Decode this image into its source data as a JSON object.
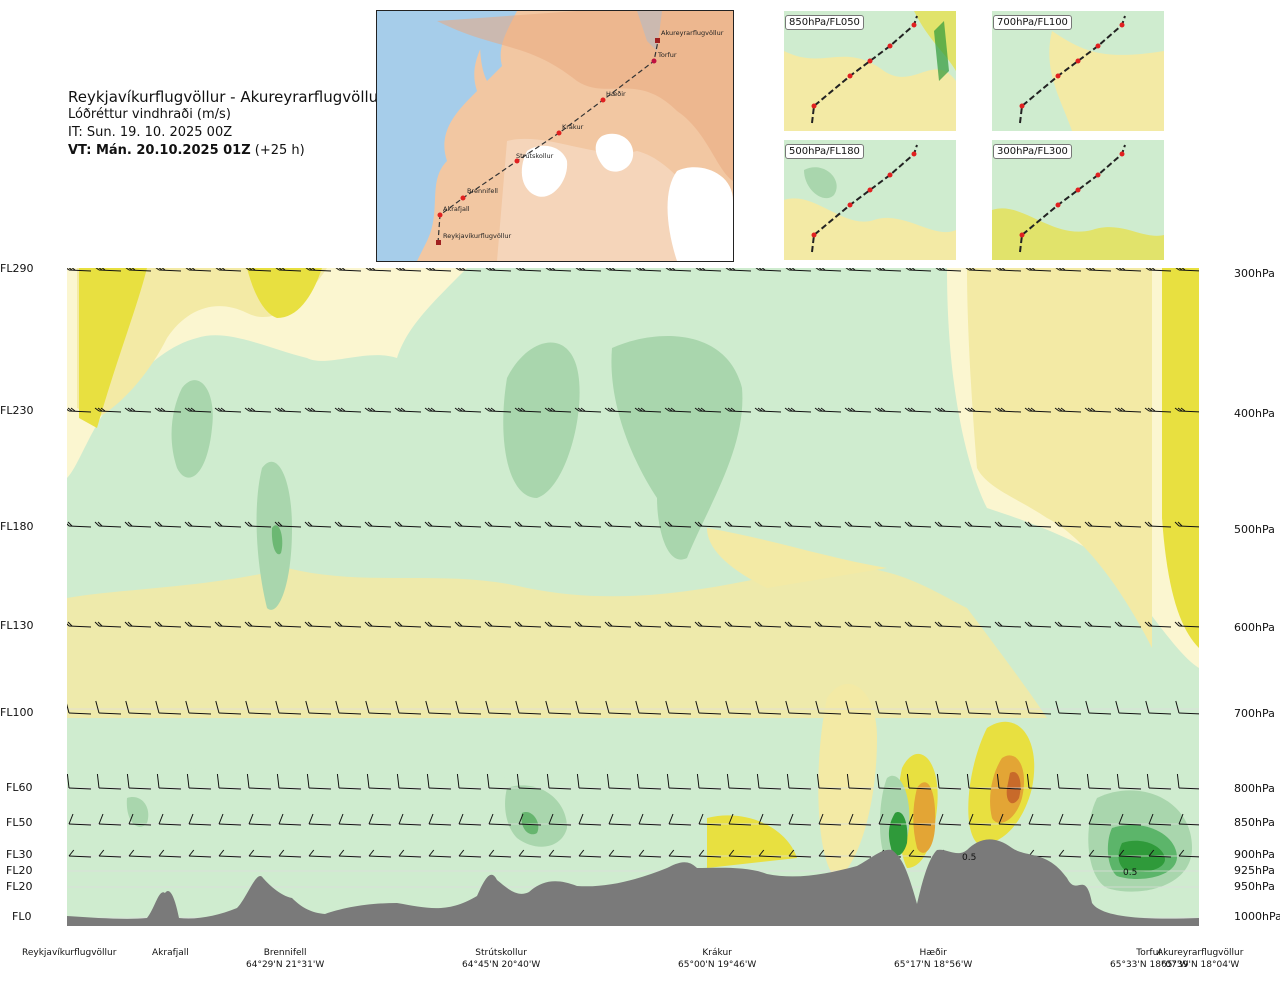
{
  "header": {
    "route": "Reykjavíkurflugvöllur - Akureyrarflugvöllur",
    "parameter": "Lóðréttur vindhraði (m/s)",
    "issue_time": "IT: Sun. 19. 10. 2025 00Z",
    "valid_time_bold": "VT: Mán. 20.10.2025 01Z",
    "valid_time_offset": "(+25 h)"
  },
  "overview_map": {
    "waypoints": [
      "Akureyrarflugvöllur",
      "Torfur",
      "Hæðir",
      "Krákur",
      "Strútskollur",
      "Brennifell",
      "Akrafjall",
      "Reykjavíkurflugvöllur"
    ]
  },
  "mini_maps": [
    {
      "label": "850hPa/FL050"
    },
    {
      "label": "700hPa/FL100"
    },
    {
      "label": "500hPa/FL180"
    },
    {
      "label": "300hPa/FL300"
    }
  ],
  "left_axis": [
    "FL290",
    "FL230",
    "FL180",
    "FL130",
    "FL100",
    "FL60",
    "FL50",
    "FL30",
    "FL20",
    "FL20",
    "FL0"
  ],
  "right_axis": [
    "300hPa",
    "400hPa",
    "500hPa",
    "600hPa",
    "700hPa",
    "800hPa",
    "850hPa",
    "900hPa",
    "925hPa",
    "950hPa",
    "1000hPa"
  ],
  "contour_labels": [
    "0.5",
    "0.5"
  ],
  "bottom_stations": [
    {
      "name": "Reykjavíkurflugvöllur",
      "coord": ""
    },
    {
      "name": "Akrafjall",
      "coord": ""
    },
    {
      "name": "Brennifell",
      "coord": "64°29'N 21°31'W"
    },
    {
      "name": "Strútskollur",
      "coord": "64°45'N 20°40'W"
    },
    {
      "name": "Krákur",
      "coord": "65°00'N 19°46'W"
    },
    {
      "name": "Hæðir",
      "coord": "65°17'N 18°56'W"
    },
    {
      "name": "Torfur",
      "coord": "65°33'N 18°07'W"
    },
    {
      "name": "Akureyrarflugvöllur",
      "coord": "65°39'N 18°04'W"
    }
  ],
  "colors": {
    "terrain": "#7a7a7a",
    "neutral": "#ffffff",
    "pale_cream": "#fbf6d0",
    "light_yellow": "#f3eaa5",
    "yellow": "#e8e040",
    "light_green": "#cfeccf",
    "mid_green": "#a9d6ad",
    "dark_green": "#2f9a3a",
    "orange": "#e3a535",
    "red_brown": "#c86a2a",
    "route_line": "#222222",
    "waypoint": "#e02020"
  }
}
